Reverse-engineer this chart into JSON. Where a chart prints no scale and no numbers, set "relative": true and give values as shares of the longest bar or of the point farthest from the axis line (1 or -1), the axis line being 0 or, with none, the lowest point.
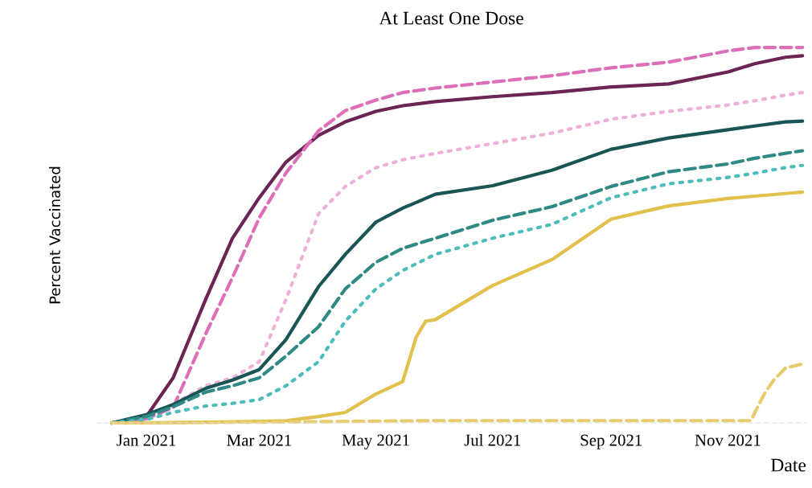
{
  "chart_data": {
    "type": "line",
    "title": "At Least One Dose",
    "xlabel": "Date",
    "ylabel": "Percent Vaccinated",
    "relative": true,
    "legend": false,
    "x": [
      "2020-12-14",
      "2021-01-01",
      "2021-01-15",
      "2021-02-01",
      "2021-02-15",
      "2021-03-01",
      "2021-03-15",
      "2021-04-01",
      "2021-04-15",
      "2021-05-01",
      "2021-05-15",
      "2021-06-01",
      "2021-07-01",
      "2021-08-01",
      "2021-09-01",
      "2021-10-01",
      "2021-11-01",
      "2021-11-15",
      "2021-12-01",
      "2021-12-10"
    ],
    "xlim": [
      "2020-12-06",
      "2021-12-12"
    ],
    "xticks": [
      {
        "value": "2021-01-01",
        "label": "Jan 2021"
      },
      {
        "value": "2021-03-01",
        "label": "Mar 2021"
      },
      {
        "value": "2021-05-01",
        "label": "May 2021"
      },
      {
        "value": "2021-07-01",
        "label": "Jul 2021"
      },
      {
        "value": "2021-09-01",
        "label": "Sep 2021"
      },
      {
        "value": "2021-11-01",
        "label": "Nov 2021"
      }
    ],
    "series": [
      {
        "color": "#6b2453",
        "line_style": "solid",
        "values": [
          0,
          0.017,
          0.12,
          0.329,
          0.492,
          0.6,
          0.695,
          0.766,
          0.802,
          0.83,
          0.845,
          0.856,
          0.869,
          0.88,
          0.895,
          0.903,
          0.935,
          0.957,
          0.974,
          0.978
        ]
      },
      {
        "color": "#dd6fb8",
        "line_style": "dashed",
        "values": [
          0,
          0.011,
          0.041,
          0.237,
          0.387,
          0.546,
          0.666,
          0.778,
          0.832,
          0.86,
          0.88,
          0.892,
          0.908,
          0.925,
          0.946,
          0.961,
          0.991,
          1,
          1,
          1
        ]
      },
      {
        "color": "#eeb0d8",
        "line_style": "dotted",
        "values": [
          0,
          0.019,
          0.049,
          0.099,
          0.12,
          0.163,
          0.329,
          0.557,
          0.63,
          0.68,
          0.701,
          0.718,
          0.744,
          0.772,
          0.809,
          0.83,
          0.847,
          0.858,
          0.873,
          0.88
        ]
      },
      {
        "color": "#1a5555",
        "line_style": "solid",
        "values": [
          0,
          0.022,
          0.049,
          0.092,
          0.114,
          0.142,
          0.222,
          0.363,
          0.449,
          0.535,
          0.572,
          0.609,
          0.632,
          0.673,
          0.729,
          0.759,
          0.781,
          0.791,
          0.802,
          0.804
        ]
      },
      {
        "color": "#2f8a85",
        "line_style": "dashed",
        "values": [
          0,
          0.017,
          0.043,
          0.082,
          0.099,
          0.12,
          0.178,
          0.256,
          0.357,
          0.428,
          0.465,
          0.492,
          0.54,
          0.576,
          0.63,
          0.669,
          0.69,
          0.705,
          0.718,
          0.725
        ]
      },
      {
        "color": "#4dbdbb",
        "line_style": "dotted",
        "values": [
          0,
          0.009,
          0.028,
          0.045,
          0.052,
          0.062,
          0.099,
          0.163,
          0.271,
          0.357,
          0.406,
          0.449,
          0.492,
          0.529,
          0.6,
          0.637,
          0.654,
          0.665,
          0.68,
          0.686
        ]
      },
      {
        "color": "#e2c04c",
        "line_style": "solid",
        "x": [
          "2020-12-14",
          "2021-01-01",
          "2021-02-01",
          "2021-03-01",
          "2021-03-15",
          "2021-04-01",
          "2021-04-15",
          "2021-05-01",
          "2021-05-15",
          "2021-05-22",
          "2021-05-27",
          "2021-06-01",
          "2021-07-01",
          "2021-08-01",
          "2021-09-01",
          "2021-10-01",
          "2021-11-01",
          "2021-11-15",
          "2021-12-01",
          "2021-12-10"
        ],
        "values": [
          0,
          0,
          0.002,
          0.004,
          0.006,
          0.017,
          0.028,
          0.077,
          0.11,
          0.228,
          0.271,
          0.275,
          0.366,
          0.435,
          0.543,
          0.578,
          0.598,
          0.604,
          0.611,
          0.615
        ]
      },
      {
        "color": "#e8cc6c",
        "line_style": "dashed",
        "x": [
          "2020-12-14",
          "2021-03-01",
          "2021-06-01",
          "2021-11-13",
          "2021-11-20",
          "2021-11-25",
          "2021-12-01",
          "2021-12-10"
        ],
        "values": [
          0,
          0.002,
          0.006,
          0.006,
          0.077,
          0.114,
          0.146,
          0.157
        ]
      }
    ]
  }
}
